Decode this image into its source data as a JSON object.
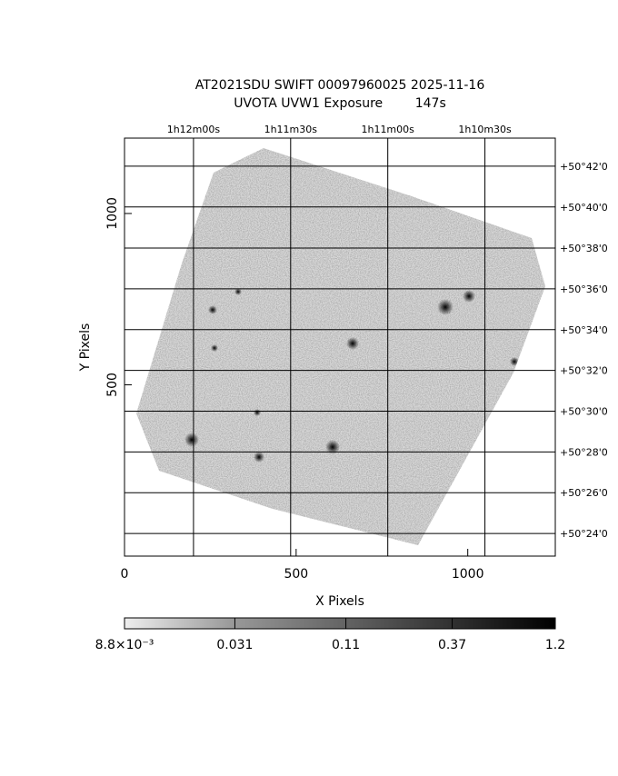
{
  "chart_data": {
    "type": "image",
    "title": [
      "AT2021SDU SWIFT 00097960025 2025-11-16",
      "UVOTA UVW1 Exposure        147s"
    ],
    "xlabel": "X Pixels",
    "ylabel": "Y Pixels",
    "xlim": [
      0,
      1255
    ],
    "ylim": [
      0,
      1220
    ],
    "xticks": [
      0,
      500,
      1000
    ],
    "yticks": [
      500,
      1000
    ],
    "ra_ticks": [
      {
        "value": 201,
        "label": "1h12m00s"
      },
      {
        "value": 484,
        "label": "1h11m30s"
      },
      {
        "value": 767,
        "label": "1h11m00s"
      },
      {
        "value": 1050,
        "label": "1h10m30s"
      }
    ],
    "dec_ticks": [
      {
        "value": 1138,
        "label": "+50°42'0"
      },
      {
        "value": 1019,
        "label": "+50°40'0"
      },
      {
        "value": 899,
        "label": "+50°38'0"
      },
      {
        "value": 780,
        "label": "+50°36'0"
      },
      {
        "value": 661,
        "label": "+50°34'0"
      },
      {
        "value": 542,
        "label": "+50°32'0"
      },
      {
        "value": 423,
        "label": "+50°30'0"
      },
      {
        "value": 304,
        "label": "+50°28'0"
      },
      {
        "value": 185,
        "label": "+50°26'0"
      },
      {
        "value": 66,
        "label": "+50°24'0"
      }
    ],
    "colorbar": {
      "log": true,
      "clim": [
        0.0088,
        1.2
      ],
      "ticks": [
        {
          "value": 0.0088,
          "label": "8.8×10⁻³"
        },
        {
          "value": 0.031,
          "label": "0.031"
        },
        {
          "value": 0.11,
          "label": "0.11"
        },
        {
          "value": 0.37,
          "label": "0.37"
        },
        {
          "value": 1.2,
          "label": "1.2"
        }
      ]
    }
  }
}
